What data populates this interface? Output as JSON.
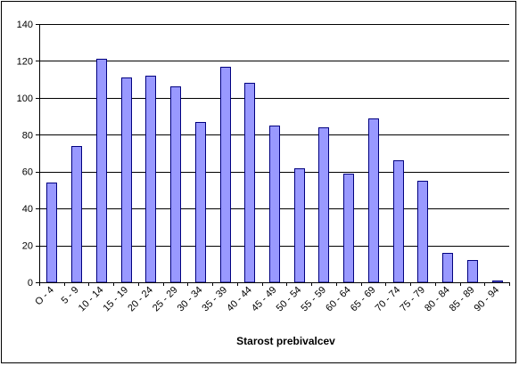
{
  "chart_data": {
    "type": "bar",
    "xlabel": "Starost prebivalcev",
    "ylabel": "",
    "ylim": [
      0,
      140
    ],
    "yticks": [
      0,
      20,
      40,
      60,
      80,
      100,
      120,
      140
    ],
    "grid": "horizontal",
    "legend": "none",
    "categories": [
      "O - 4",
      "5 - 9",
      "10 - 14",
      "15 - 19",
      "20 - 24",
      "25 - 29",
      "30 - 34",
      "35 - 39",
      "40 - 44",
      "45 - 49",
      "50 - 54",
      "55 - 59",
      "60 - 64",
      "65 - 69",
      "70 - 74",
      "75 - 79",
      "80 - 84",
      "85 - 89",
      "90 - 94"
    ],
    "values": [
      54,
      74,
      121,
      111,
      112,
      106,
      87,
      117,
      108,
      85,
      62,
      84,
      59,
      89,
      66,
      55,
      16,
      12,
      1
    ],
    "bar_color": "#9999ff",
    "bar_border_color": "#000080"
  }
}
